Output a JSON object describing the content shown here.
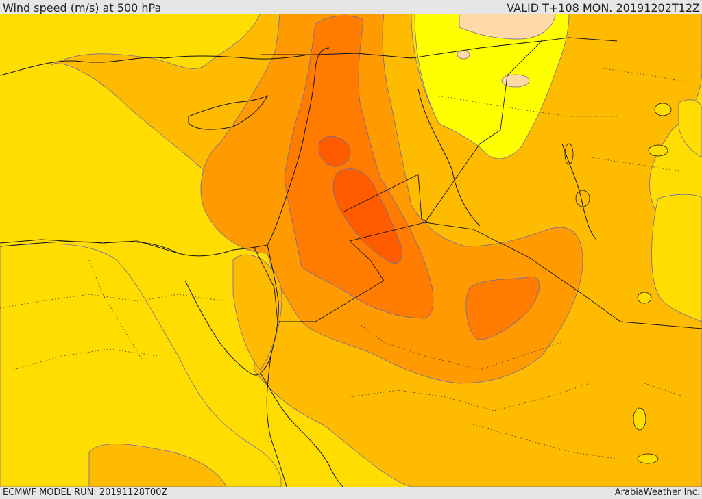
{
  "header": {
    "title": "Wind speed (m/s) at 500 hPa",
    "valid": "VALID T+108 MON. 20191202T12Z"
  },
  "footer": {
    "model_run": "ECMWF MODEL RUN: 20191128T00Z",
    "brand": "ArabiaWeather Inc."
  },
  "map": {
    "field": "wind speed",
    "level": "500 hPa",
    "palette": {
      "calm": "#ffff00",
      "light": "#ffdd00",
      "moderate": "#ffbb00",
      "fresh": "#ff9a00",
      "strong": "#ff7c00",
      "very_strong": "#ff5c00",
      "cloud_pale": "#ffd9a8",
      "border": "#111111",
      "contour": "#6a6aa8"
    }
  }
}
